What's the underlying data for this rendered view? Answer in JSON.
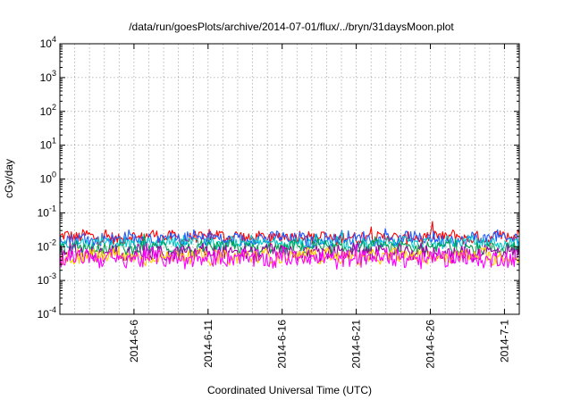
{
  "chart_data": {
    "type": "line",
    "title": "/data/run/goesPlots/archive/2014-07-01/flux/../bryn/31daysMoon.plot",
    "xlabel": "Coordinated Universal Time (UTC)",
    "ylabel": "cGy/day",
    "yscale": "log",
    "ylim": [
      0.0001,
      10000
    ],
    "y_ticks": [
      {
        "base": "10",
        "exp": "-4",
        "value": 0.0001
      },
      {
        "base": "10",
        "exp": "-3",
        "value": 0.001
      },
      {
        "base": "10",
        "exp": "-2",
        "value": 0.01
      },
      {
        "base": "10",
        "exp": "-1",
        "value": 0.1
      },
      {
        "base": "10",
        "exp": "0",
        "value": 1
      },
      {
        "base": "10",
        "exp": "1",
        "value": 10
      },
      {
        "base": "10",
        "exp": "2",
        "value": 100
      },
      {
        "base": "10",
        "exp": "3",
        "value": 1000
      },
      {
        "base": "10",
        "exp": "4",
        "value": 10000
      }
    ],
    "xlim": [
      "2014-06-01",
      "2014-07-02"
    ],
    "x_ticks": [
      "2014-6-6",
      "2014-6-11",
      "2014-6-16",
      "2014-6-21",
      "2014-6-26",
      "2014-7-1"
    ],
    "grid": true,
    "series": [
      {
        "color": "#ff0000",
        "level": 0.019,
        "spread": 0.18
      },
      {
        "color": "#1e5aff",
        "level": 0.017,
        "spread": 0.2
      },
      {
        "color": "#00c8c8",
        "level": 0.013,
        "spread": 0.15
      },
      {
        "color": "#00a050",
        "level": 0.009,
        "spread": 0.18
      },
      {
        "color": "#a000a0",
        "level": 0.0065,
        "spread": 0.22
      },
      {
        "color": "#ffd000",
        "level": 0.005,
        "spread": 0.2
      },
      {
        "color": "#ff00ff",
        "level": 0.0045,
        "spread": 0.26
      }
    ]
  }
}
